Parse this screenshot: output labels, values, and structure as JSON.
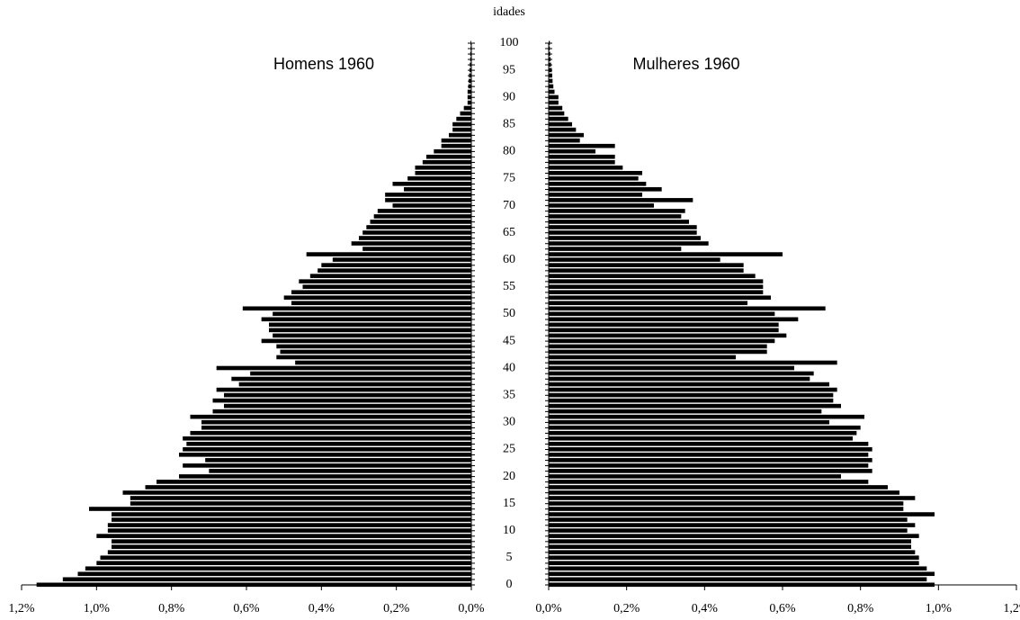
{
  "chart_data": {
    "type": "population-pyramid",
    "ylabel": "idades",
    "color": "#000000",
    "xlim": [
      0,
      1.2
    ],
    "xticks": [
      {
        "value": 0,
        "label": "0,0%"
      },
      {
        "value": 0.2,
        "label": "0,2%"
      },
      {
        "value": 0.4,
        "label": "0,4%"
      },
      {
        "value": 0.6,
        "label": "0,6%"
      },
      {
        "value": 0.8,
        "label": "0,8%"
      },
      {
        "value": 1.0,
        "label": "1,0%"
      },
      {
        "value": 1.2,
        "label": "1,2%"
      }
    ],
    "ylim": [
      0,
      100
    ],
    "yticks": [
      0,
      5,
      10,
      15,
      20,
      25,
      30,
      35,
      40,
      45,
      50,
      55,
      60,
      65,
      70,
      75,
      80,
      85,
      90,
      95,
      100
    ],
    "y": [
      0,
      1,
      2,
      3,
      4,
      5,
      6,
      7,
      8,
      9,
      10,
      11,
      12,
      13,
      14,
      15,
      16,
      17,
      18,
      19,
      20,
      21,
      22,
      23,
      24,
      25,
      26,
      27,
      28,
      29,
      30,
      31,
      32,
      33,
      34,
      35,
      36,
      37,
      38,
      39,
      40,
      41,
      42,
      43,
      44,
      45,
      46,
      47,
      48,
      49,
      50,
      51,
      52,
      53,
      54,
      55,
      56,
      57,
      58,
      59,
      60,
      61,
      62,
      63,
      64,
      65,
      66,
      67,
      68,
      69,
      70,
      71,
      72,
      73,
      74,
      75,
      76,
      77,
      78,
      79,
      80,
      81,
      82,
      83,
      84,
      85,
      86,
      87,
      88,
      89,
      90,
      91,
      92,
      93,
      94,
      95,
      96,
      97,
      98,
      99,
      100
    ],
    "series": [
      {
        "name": "Homens 1960",
        "values": [
          1.16,
          1.09,
          1.05,
          1.03,
          1.0,
          0.99,
          0.97,
          0.96,
          0.96,
          1.0,
          0.97,
          0.97,
          0.96,
          0.96,
          1.02,
          0.91,
          0.91,
          0.93,
          0.87,
          0.84,
          0.78,
          0.7,
          0.77,
          0.71,
          0.78,
          0.77,
          0.76,
          0.77,
          0.75,
          0.72,
          0.72,
          0.75,
          0.69,
          0.66,
          0.69,
          0.66,
          0.68,
          0.62,
          0.64,
          0.59,
          0.68,
          0.47,
          0.52,
          0.51,
          0.52,
          0.56,
          0.53,
          0.54,
          0.54,
          0.56,
          0.53,
          0.61,
          0.48,
          0.5,
          0.48,
          0.45,
          0.46,
          0.43,
          0.41,
          0.4,
          0.37,
          0.44,
          0.29,
          0.32,
          0.3,
          0.29,
          0.28,
          0.27,
          0.26,
          0.25,
          0.21,
          0.23,
          0.23,
          0.18,
          0.21,
          0.17,
          0.15,
          0.15,
          0.13,
          0.12,
          0.1,
          0.08,
          0.08,
          0.06,
          0.05,
          0.05,
          0.04,
          0.03,
          0.02,
          0.01,
          0.01,
          0.01,
          0.008,
          0.007,
          0.006,
          0.005,
          0.004,
          0.003,
          0.003,
          0.002,
          0.002
        ]
      },
      {
        "name": "Mulheres 1960",
        "values": [
          0.99,
          0.97,
          0.99,
          0.97,
          0.95,
          0.95,
          0.94,
          0.93,
          0.93,
          0.95,
          0.92,
          0.94,
          0.92,
          0.99,
          0.91,
          0.91,
          0.94,
          0.9,
          0.87,
          0.82,
          0.75,
          0.83,
          0.82,
          0.83,
          0.82,
          0.83,
          0.82,
          0.78,
          0.79,
          0.8,
          0.72,
          0.81,
          0.7,
          0.75,
          0.73,
          0.73,
          0.74,
          0.72,
          0.67,
          0.68,
          0.63,
          0.74,
          0.48,
          0.56,
          0.56,
          0.58,
          0.61,
          0.59,
          0.59,
          0.64,
          0.58,
          0.71,
          0.51,
          0.57,
          0.55,
          0.55,
          0.55,
          0.53,
          0.5,
          0.5,
          0.44,
          0.6,
          0.34,
          0.41,
          0.39,
          0.38,
          0.38,
          0.36,
          0.34,
          0.35,
          0.27,
          0.37,
          0.24,
          0.29,
          0.25,
          0.23,
          0.24,
          0.19,
          0.17,
          0.17,
          0.12,
          0.17,
          0.08,
          0.09,
          0.07,
          0.06,
          0.05,
          0.04,
          0.035,
          0.025,
          0.025,
          0.015,
          0.012,
          0.01,
          0.009,
          0.008,
          0.006,
          0.005,
          0.004,
          0.003,
          0.003
        ]
      }
    ]
  }
}
